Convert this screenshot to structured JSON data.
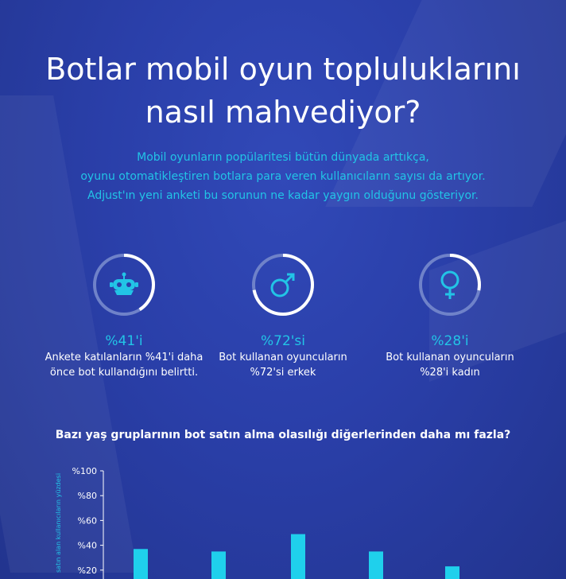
{
  "title_line1": "Botlar mobil oyun topluluklarını",
  "title_line2": "nasıl mahvediyor?",
  "intro": [
    "Mobil oyunların popülaritesi bütün dünyada arttıkça,",
    "oyunu otomatikleştiren botlara para veren kullanıcıların sayısı da artıyor.",
    "Adjust'ın yeni anketi bu sorunun ne kadar yaygın olduğunu gösteriyor."
  ],
  "stats": [
    {
      "icon": "robot-icon",
      "fraction": 0.41,
      "percent_label": "%41'i",
      "desc_line1": "Ankete katılanların %41'i daha",
      "desc_line2": "önce bot kullandığını belirtti."
    },
    {
      "icon": "male-icon",
      "fraction": 0.72,
      "percent_label": "%72'si",
      "desc_line1": "Bot kullanan oyuncuların",
      "desc_line2": "%72'si erkek"
    },
    {
      "icon": "female-icon",
      "fraction": 0.28,
      "percent_label": "%28'i",
      "desc_line1": "Bot kullanan oyuncuların",
      "desc_line2": "%28'i kadın"
    }
  ],
  "colors": {
    "accent": "#22c4e6",
    "ring_track": "#6f82c9",
    "ring_fill": "#ffffff",
    "bar": "#1fd0ec"
  },
  "chart_title": "Bazı yaş gruplarının bot satın alma olasılığı diğerlerinden daha mı fazla?",
  "chart_data": {
    "type": "bar",
    "title": "Bazı yaş gruplarının bot satın alma olasılığı diğerlerinden daha mı fazla?",
    "ylabel": "satın alan kullanıcıların yüzdesi",
    "yticks": [
      "%100",
      "%80",
      "%60",
      "%40",
      "%20"
    ],
    "ylim": [
      0,
      100
    ],
    "values": [
      37,
      35,
      49,
      35,
      23
    ],
    "grid": false
  }
}
